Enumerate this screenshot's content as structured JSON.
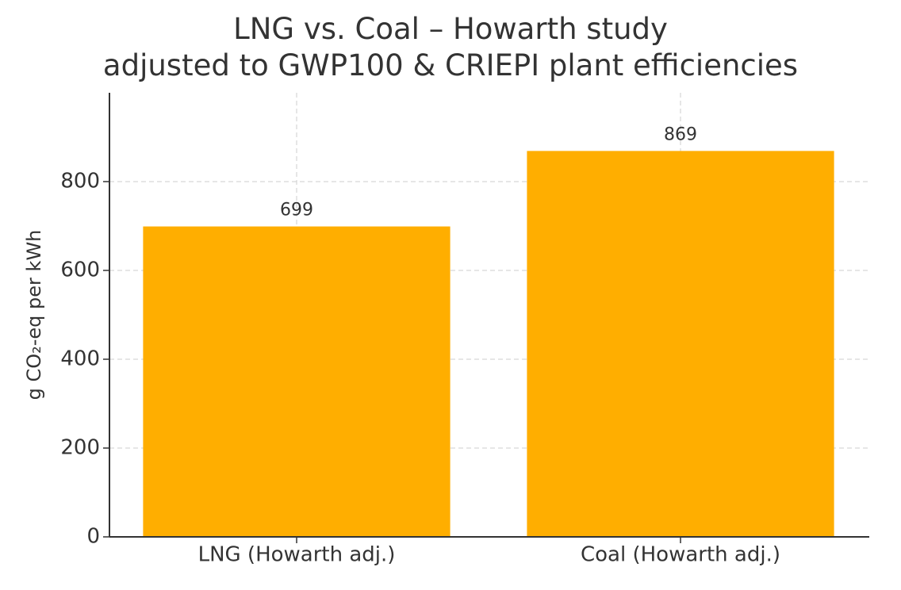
{
  "chart_data": {
    "type": "bar",
    "title": "LNG vs. Coal – Howarth study\nadjusted to GWP100 & CRIEPI plant efficiencies",
    "y_label": "g CO₂-eq per kWh",
    "categories": [
      "LNG (Howarth adj.)",
      "Coal (Howarth adj.)"
    ],
    "values": [
      699,
      869
    ],
    "color": "#ffae00",
    "ylim": [
      0,
      1000
    ],
    "yticks": [
      0,
      200,
      400,
      600,
      800
    ],
    "grid": true
  }
}
